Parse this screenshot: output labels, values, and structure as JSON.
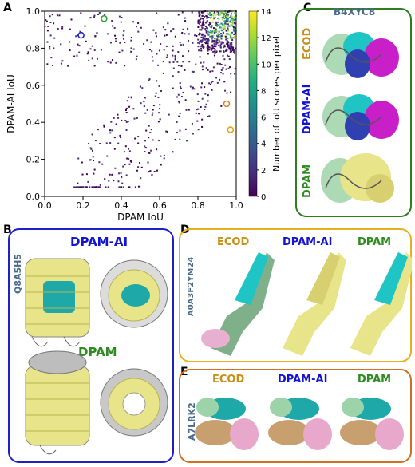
{
  "panels": {
    "A": "A",
    "B": "B",
    "C": "C",
    "D": "D",
    "E": "E"
  },
  "chart_data": {
    "type": "scatter",
    "xlabel": "DPAM IoU",
    "ylabel": "DPAM-AI IoU",
    "xlim": [
      0,
      1
    ],
    "ylim": [
      0,
      1
    ],
    "xticks": [
      "0.0",
      "0.2",
      "0.4",
      "0.6",
      "0.8",
      "1.0"
    ],
    "yticks": [
      "0.0",
      "0.2",
      "0.4",
      "0.6",
      "0.8",
      "1.0"
    ],
    "colorbar": {
      "label": "Number of IoU scores per pixel",
      "range": [
        0,
        14
      ],
      "ticks": [
        "0",
        "2",
        "4",
        "6",
        "8",
        "10",
        "12",
        "14"
      ]
    },
    "highlighted_points": [
      {
        "x": 0.19,
        "y": 0.87,
        "color": "#1f1fd0"
      },
      {
        "x": 0.31,
        "y": 0.96,
        "color": "#2ca02c"
      },
      {
        "x": 0.95,
        "y": 0.5,
        "color": "#d0801f"
      },
      {
        "x": 0.97,
        "y": 0.36,
        "color": "#e8a000"
      }
    ],
    "grid": false
  },
  "panelC": {
    "id_label": "B4XYC8",
    "rows": [
      "ECOD",
      "DPAM-AI",
      "DPAM"
    ],
    "border_color": "#2e7d1f"
  },
  "panelB": {
    "id_label": "Q8A5H5",
    "top_label": "DPAM-AI",
    "bottom_label": "DPAM",
    "border_color": "#1f1fc8"
  },
  "panelD": {
    "id_label": "A0A3F2YM24",
    "labels": [
      "ECOD",
      "DPAM-AI",
      "DPAM"
    ],
    "border_color": "#e8b020"
  },
  "panelE": {
    "id_label": "A7LRK2",
    "labels": [
      "ECOD",
      "DPAM-AI",
      "DPAM"
    ],
    "border_color": "#d07020"
  },
  "colors": {
    "ecod": "#c8901a",
    "dpamai": "#1414d0",
    "dpam": "#2e8b1f",
    "id": "#4a6a8a"
  }
}
